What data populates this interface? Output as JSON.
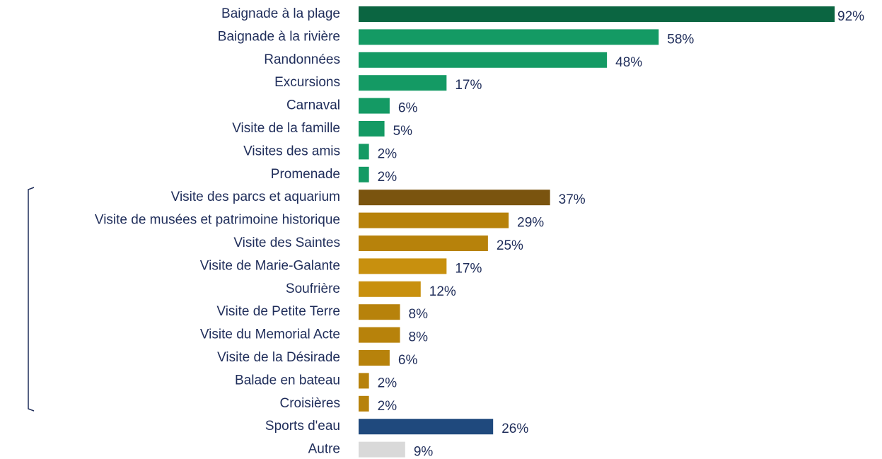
{
  "chart_data": {
    "type": "barh",
    "categories": [
      "Baignade à la plage",
      "Baignade à la rivière",
      "Randonnées",
      "Excursions",
      "Carnaval",
      "Visite de la famille",
      "Visites des amis",
      "Promenade",
      "Visite des parcs et aquarium",
      "Visite de musées et patrimoine historique",
      "Visite des Saintes",
      "Visite de Marie-Galante",
      "Soufrière",
      "Visite de Petite Terre",
      "Visite du Memorial Acte",
      "Visite de la Désirade",
      "Balade en bateau",
      "Croisières",
      "Sports d'eau",
      "Autre"
    ],
    "values": [
      92,
      58,
      48,
      17,
      6,
      5,
      2,
      2,
      37,
      29,
      25,
      17,
      12,
      8,
      8,
      6,
      2,
      2,
      26,
      9
    ],
    "value_labels": [
      "92%",
      "58%",
      "48%",
      "17%",
      "6%",
      "5%",
      "2%",
      "2%",
      "37%",
      "29%",
      "25%",
      "17%",
      "12%",
      "8%",
      "8%",
      "6%",
      "2%",
      "2%",
      "26%",
      "9%"
    ],
    "colors": [
      "#0b6541",
      "#149a64",
      "#149a64",
      "#149a64",
      "#149a64",
      "#149a64",
      "#149a64",
      "#149a64",
      "#7a540f",
      "#b7820b",
      "#b7820b",
      "#c8900e",
      "#c8900e",
      "#b7820b",
      "#b7820b",
      "#b7820b",
      "#b7820b",
      "#b7820b",
      "#1f497d",
      "#d9d9d9"
    ]
  }
}
